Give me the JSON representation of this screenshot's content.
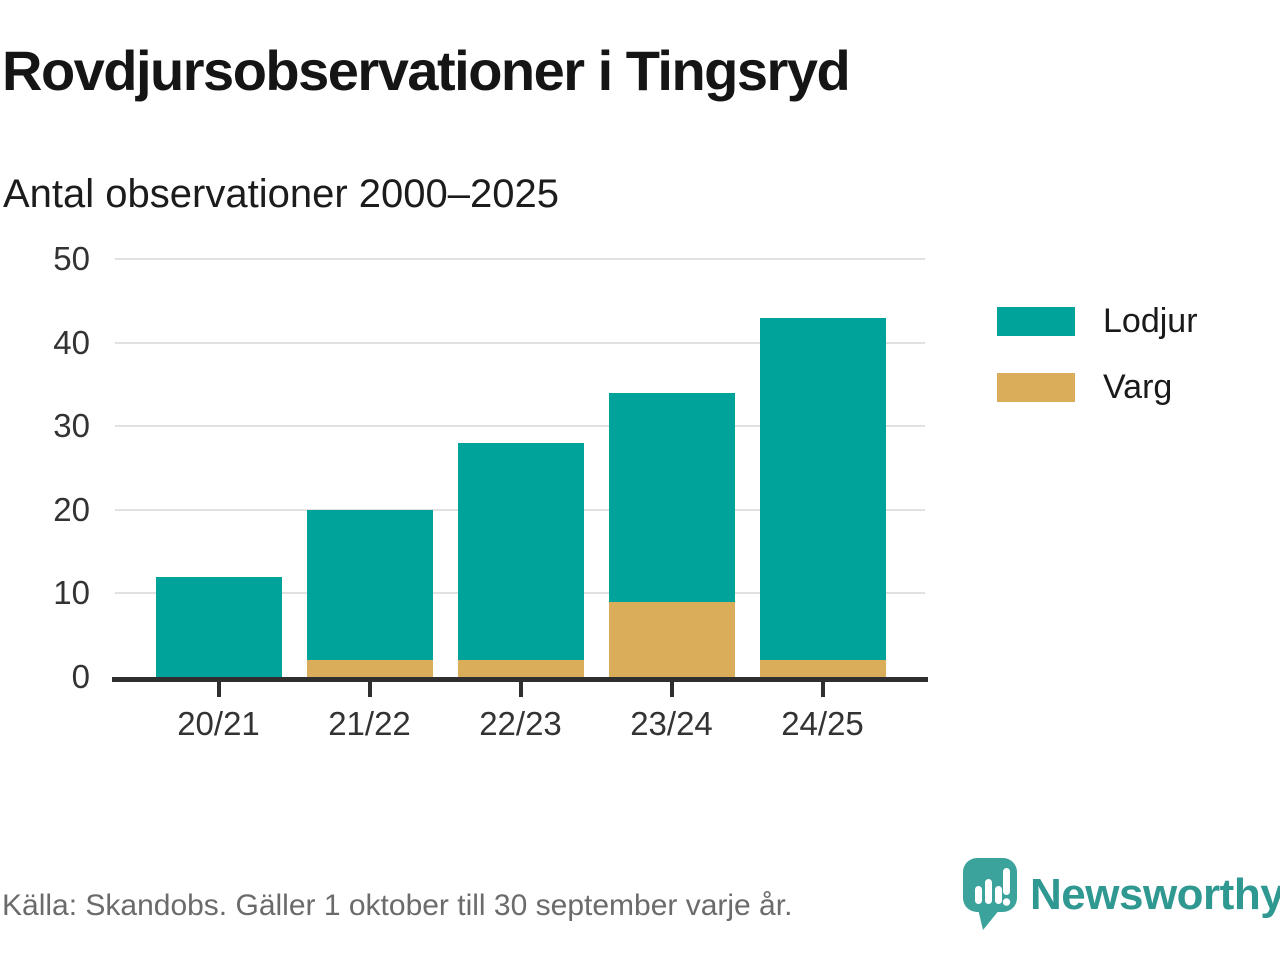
{
  "title": "Rovdjursobservationer i Tingsryd",
  "subtitle": "Antal observationer 2000–2025",
  "source_note": "Källa: Skandobs. Gäller 1 oktober till 30 september varje år.",
  "brand": {
    "name": "Newsworthy",
    "icon": "newsworthy-speech-bubble-bar-chart-icon",
    "icon_color": "#3ba39c",
    "wordmark_color": "#2f9890"
  },
  "colors": {
    "lodjur": "#00a39a",
    "varg": "#d9ad5a",
    "grid": "#e1e1e1",
    "axis": "#2f2f2f",
    "tick_text": "#333333",
    "muted_text": "#6b6b6b"
  },
  "legend": [
    {
      "label": "Lodjur",
      "color": "#00a39a"
    },
    {
      "label": "Varg",
      "color": "#d9ad5a"
    }
  ],
  "chart_data": {
    "type": "bar",
    "stacked": true,
    "title": "Rovdjursobservationer i Tingsryd",
    "subtitle": "Antal observationer 2000–2025",
    "xlabel": "",
    "ylabel": "",
    "categories": [
      "20/21",
      "21/22",
      "22/23",
      "23/24",
      "24/25"
    ],
    "series": [
      {
        "name": "Lodjur",
        "color": "#00a39a",
        "values": [
          12,
          18,
          26,
          25,
          41
        ]
      },
      {
        "name": "Varg",
        "color": "#d9ad5a",
        "values": [
          0,
          2,
          2,
          9,
          2
        ]
      }
    ],
    "stack_order_bottom_to_top": [
      "Varg",
      "Lodjur"
    ],
    "totals": [
      12,
      20,
      28,
      34,
      43
    ],
    "ylim": [
      0,
      50
    ],
    "yticks": [
      0,
      10,
      20,
      30,
      40,
      50
    ],
    "grid": true,
    "legend_position": "right"
  }
}
